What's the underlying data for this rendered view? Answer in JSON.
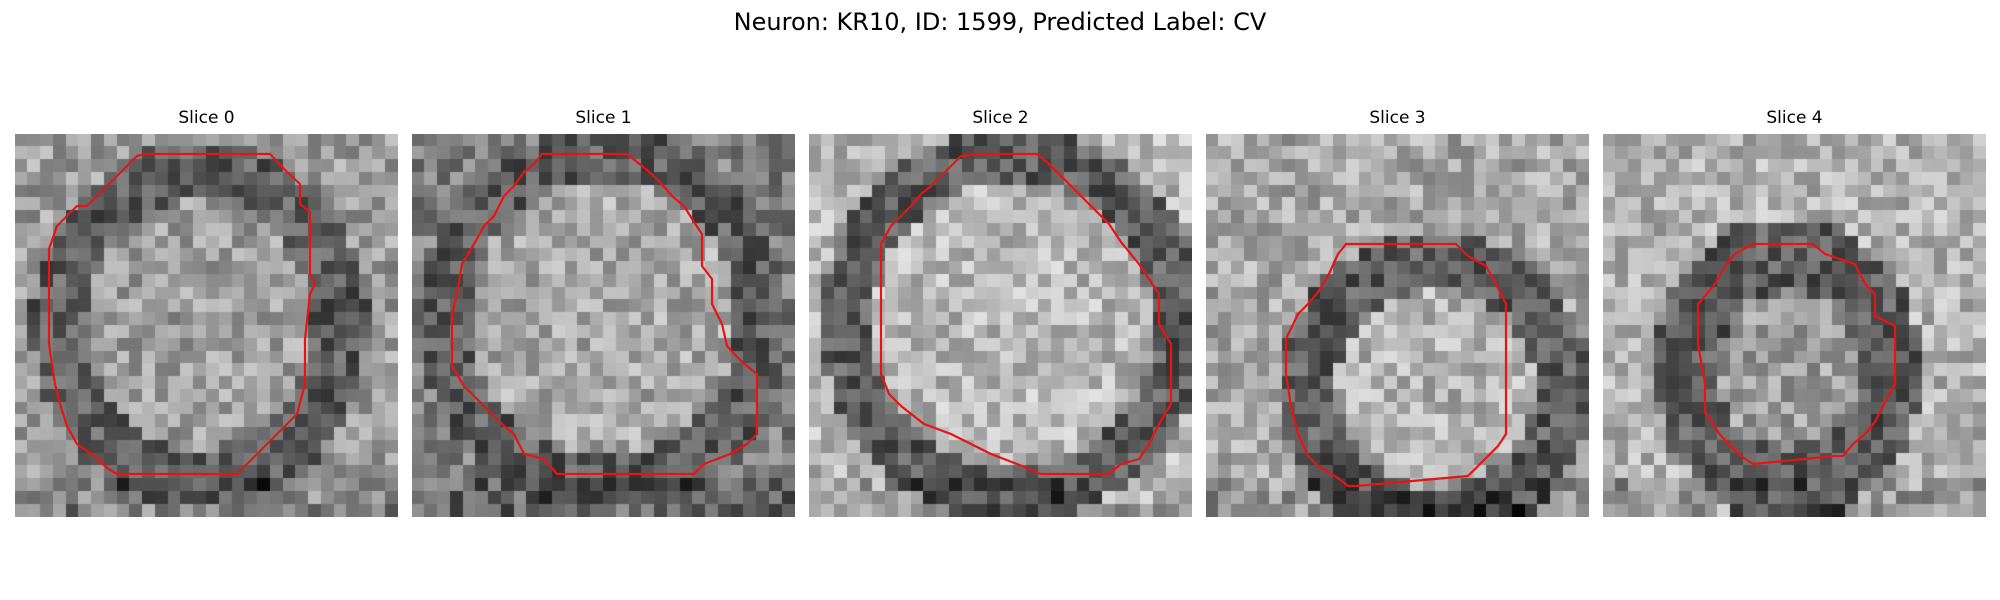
{
  "figure": {
    "title": "Neuron: KR10, ID: 1599, Predicted Label: CV",
    "contour_color": "#e81414"
  },
  "panels": [
    {
      "title": "Slice 0"
    },
    {
      "title": "Slice 1"
    },
    {
      "title": "Slice 2"
    },
    {
      "title": "Slice 3"
    },
    {
      "title": "Slice 4"
    }
  ]
}
